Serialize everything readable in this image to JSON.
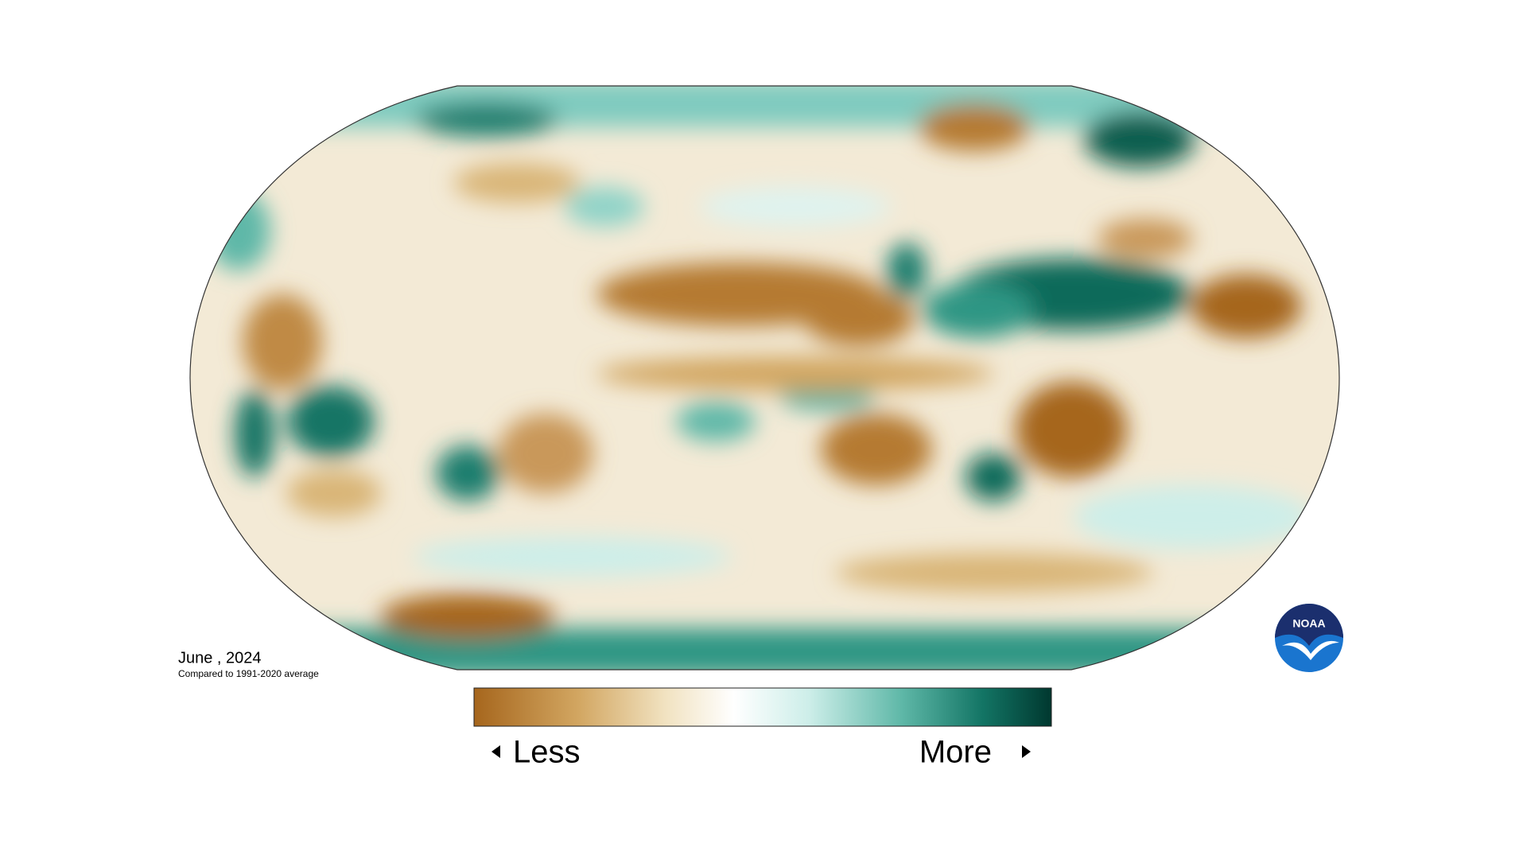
{
  "date_label": "June , 2024",
  "subtitle": "Compared to 1991-2020 average",
  "legend": {
    "low": "Less",
    "high": "More"
  },
  "logo": "NOAA"
}
